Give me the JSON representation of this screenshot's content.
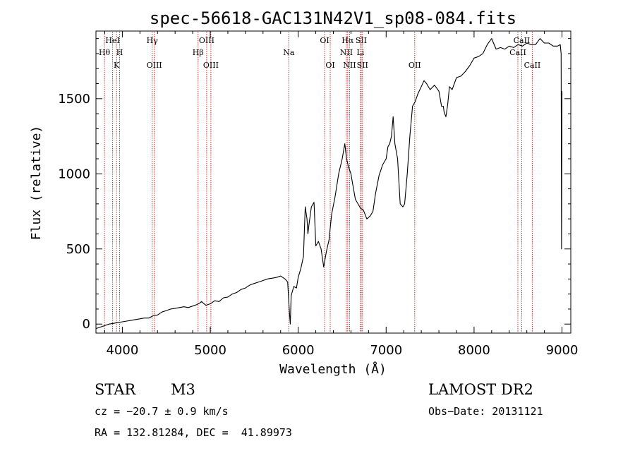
{
  "chart_data": {
    "type": "line",
    "title": "spec-56618-GAC131N42V1_sp08-084.fits",
    "xlabel": "Wavelength (Å)",
    "ylabel": "Flux (relative)",
    "xlim": [
      3700,
      9100
    ],
    "ylim": [
      -60,
      1950
    ],
    "x_ticks": [
      4000,
      5000,
      6000,
      7000,
      8000,
      9000
    ],
    "y_ticks": [
      0,
      500,
      1000,
      1500
    ],
    "grid": false,
    "line_color": "#000000",
    "marker_color": "#cc3333",
    "series": [
      {
        "x": [
          3700,
          3750,
          3800,
          3850,
          3900,
          3950,
          4000,
          4050,
          4100,
          4150,
          4200,
          4250,
          4300,
          4350,
          4400,
          4450,
          4500,
          4550,
          4600,
          4650,
          4700,
          4750,
          4800,
          4850,
          4880,
          4900,
          4950,
          5000,
          5050,
          5100,
          5150,
          5200,
          5250,
          5300,
          5350,
          5400,
          5450,
          5500,
          5550,
          5600,
          5650,
          5700,
          5750,
          5800,
          5850,
          5880,
          5900,
          5910,
          5920,
          5950,
          5980,
          6000,
          6030,
          6060,
          6080,
          6100,
          6110,
          6120,
          6150,
          6180,
          6200,
          6230,
          6260,
          6290,
          6320,
          6350,
          6380,
          6420,
          6460,
          6500,
          6530,
          6550,
          6570,
          6600,
          6620,
          6650,
          6680,
          6710,
          6740,
          6780,
          6820,
          6850,
          6880,
          6920,
          6960,
          7000,
          7020,
          7040,
          7060,
          7080,
          7100,
          7130,
          7160,
          7190,
          7210,
          7240,
          7270,
          7300,
          7330,
          7360,
          7400,
          7430,
          7460,
          7500,
          7550,
          7600,
          7630,
          7650,
          7660,
          7680,
          7700,
          7720,
          7750,
          7800,
          7850,
          7900,
          7950,
          8000,
          8050,
          8100,
          8150,
          8200,
          8250,
          8300,
          8350,
          8400,
          8450,
          8500,
          8550,
          8600,
          8650,
          8700,
          8750,
          8800,
          8850,
          8900,
          8950,
          8980,
          8990,
          8995,
          9000
        ],
        "y": [
          -30,
          -20,
          -10,
          0,
          5,
          10,
          15,
          20,
          25,
          30,
          35,
          40,
          40,
          55,
          60,
          80,
          90,
          100,
          105,
          110,
          115,
          110,
          120,
          130,
          140,
          150,
          125,
          135,
          155,
          150,
          175,
          180,
          200,
          210,
          230,
          240,
          260,
          270,
          280,
          290,
          300,
          305,
          310,
          320,
          300,
          280,
          80,
          0,
          190,
          250,
          240,
          310,
          370,
          450,
          780,
          700,
          600,
          650,
          780,
          810,
          520,
          550,
          500,
          380,
          480,
          560,
          730,
          850,
          1000,
          1100,
          1200,
          1100,
          1050,
          1000,
          930,
          830,
          800,
          770,
          760,
          700,
          720,
          750,
          870,
          990,
          1060,
          1100,
          1180,
          1200,
          1250,
          1380,
          1200,
          1100,
          800,
          780,
          800,
          1000,
          1250,
          1450,
          1480,
          1530,
          1580,
          1620,
          1600,
          1560,
          1590,
          1550,
          1450,
          1450,
          1410,
          1380,
          1460,
          1580,
          1560,
          1640,
          1650,
          1680,
          1720,
          1770,
          1780,
          1800,
          1860,
          1900,
          1830,
          1840,
          1830,
          1850,
          1840,
          1860,
          1850,
          1870,
          1860,
          1860,
          1900,
          1870,
          1870,
          1850,
          1850,
          1860,
          1800,
          500,
          1550
        ]
      }
    ],
    "lines": [
      {
        "label": "Hθ",
        "x": 3797,
        "row": 2
      },
      {
        "label": "HeI",
        "x": 3889,
        "row": 1
      },
      {
        "label": "K",
        "x": 3934,
        "row": 3
      },
      {
        "label": "H",
        "x": 3969,
        "row": 2
      },
      {
        "label": "Hγ",
        "x": 4340,
        "row": 1
      },
      {
        "label": "OIII",
        "x": 4363,
        "row": 3
      },
      {
        "label": "Hβ",
        "x": 4861,
        "row": 2
      },
      {
        "label": "OIII",
        "x": 4959,
        "row": 1
      },
      {
        "label": "OIII",
        "x": 5007,
        "row": 3
      },
      {
        "label": "Na",
        "x": 5893,
        "row": 2
      },
      {
        "label": "OI",
        "x": 6300,
        "row": 1
      },
      {
        "label": "OI",
        "x": 6364,
        "row": 3
      },
      {
        "label": "NII",
        "x": 6548,
        "row": 2
      },
      {
        "label": "Hα",
        "x": 6563,
        "row": 1
      },
      {
        "label": "NII",
        "x": 6584,
        "row": 3
      },
      {
        "label": "SII",
        "x": 6717,
        "row": 1
      },
      {
        "label": "Li",
        "x": 6708,
        "row": 2
      },
      {
        "label": "SII",
        "x": 6731,
        "row": 3
      },
      {
        "label": "OII",
        "x": 7325,
        "row": 3
      },
      {
        "label": "CaII",
        "x": 8498,
        "row": 2
      },
      {
        "label": "CaII",
        "x": 8542,
        "row": 1
      },
      {
        "label": "CaII",
        "x": 8662,
        "row": 3
      }
    ]
  },
  "info": {
    "class": "STAR",
    "subclass": "M3",
    "survey": "LAMOST DR2",
    "cz": "cz = −20.7 ± 0.9 km/s",
    "obs_date": "Obs−Date: 20131121",
    "radec": "RA = 132.81284, DEC =  41.89973"
  }
}
